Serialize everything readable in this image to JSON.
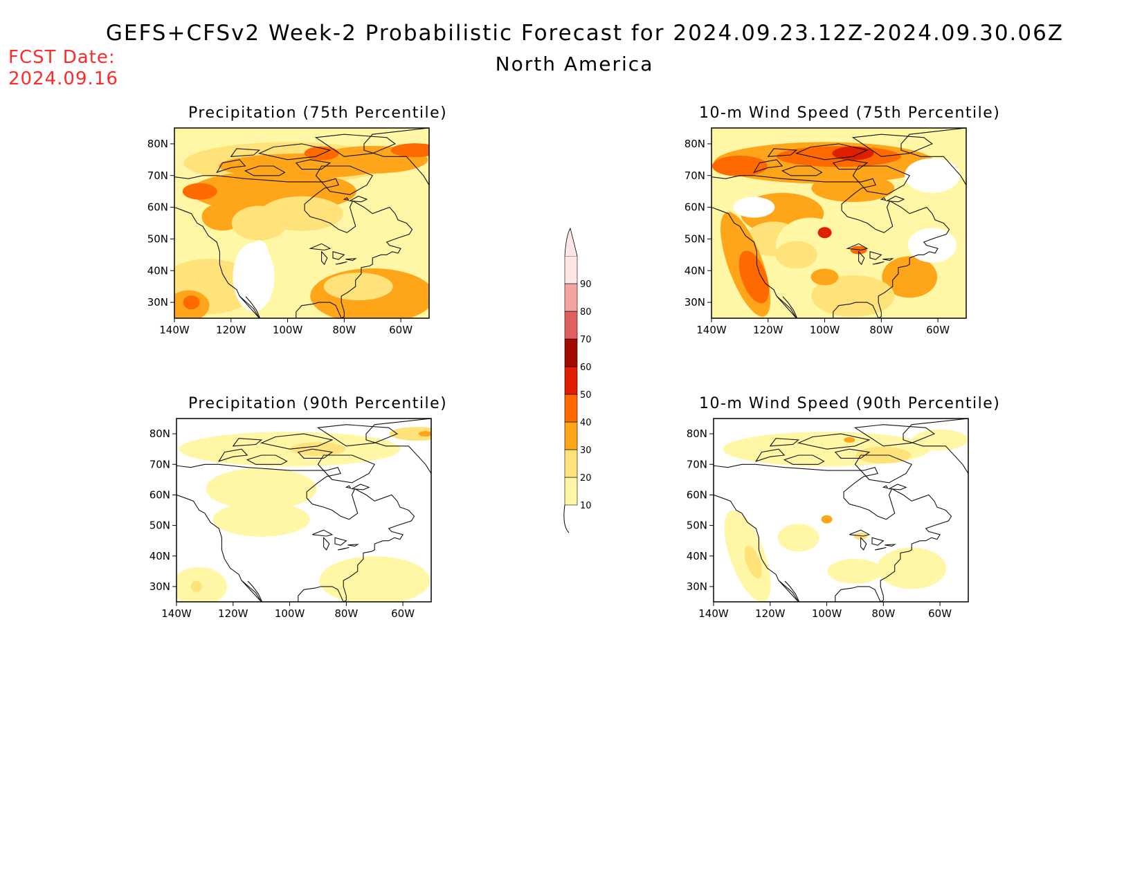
{
  "header": {
    "title": "GEFS+CFSv2 Week-2 Probabilistic Forecast for 2024.09.23.12Z-2024.09.30.06Z",
    "subtitle": "North America",
    "fcst_date_label": "FCST Date:",
    "fcst_date_value": "2024.09.16"
  },
  "axes": {
    "lon_ticks": [
      "140W",
      "120W",
      "100W",
      "80W",
      "60W"
    ],
    "lat_ticks": [
      "80N",
      "70N",
      "60N",
      "50N",
      "40N",
      "30N"
    ],
    "lon_range": [
      -140,
      -50
    ],
    "lat_range": [
      25,
      85
    ]
  },
  "panels": [
    {
      "id": "precip-75",
      "title": "Precipitation (75th Percentile)",
      "intensity": "high"
    },
    {
      "id": "wind-75",
      "title": "10-m Wind Speed (75th Percentile)",
      "intensity": "high"
    },
    {
      "id": "precip-90",
      "title": "Precipitation (90th Percentile)",
      "intensity": "low"
    },
    {
      "id": "wind-90",
      "title": "10-m Wind Speed (90th Percentile)",
      "intensity": "low"
    }
  ],
  "colorbar": {
    "levels": [
      "10",
      "20",
      "30",
      "40",
      "50",
      "60",
      "70",
      "80",
      "90"
    ],
    "colors": [
      "#fff7a6",
      "#ffe27a",
      "#ffa51a",
      "#ff6a00",
      "#e01e00",
      "#a30a00",
      "#e06060",
      "#f5a3a3",
      "#ffe6e6"
    ]
  }
}
